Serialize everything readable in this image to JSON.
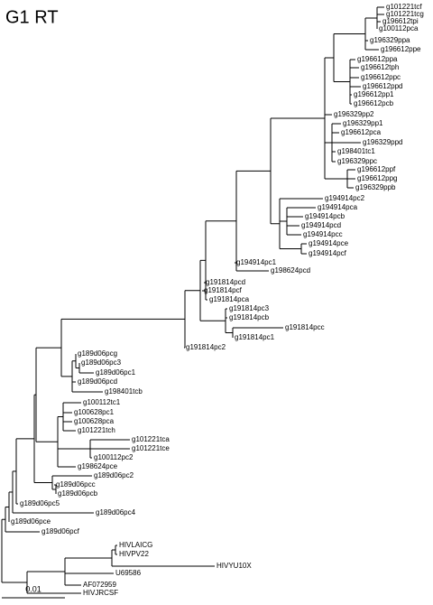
{
  "title": "G1 RT",
  "leaves": [
    "g101221tcf",
    "g101221tcg",
    "g196612tpi",
    "g100112pca",
    "g196329ppa",
    "g196612ppe",
    "g196612ppa",
    "g196612tph",
    "g196612ppc",
    "g196612ppd",
    "g196612pp1",
    "g196612pcb",
    "g196329pp2",
    "g196329pp1",
    "g196612pca",
    "g196329ppd",
    "g198401tc1",
    "g196329ppc",
    "g196612ppf",
    "g196612ppg",
    "g196329ppb",
    "g194914pc2",
    "g194914pca",
    "g194914pcb",
    "g194914pcd",
    "g194914pcc",
    "g194914pce",
    "g194914pcf",
    "g194914pc1",
    "g198624pcd",
    "g191814pcd",
    "g191814pcf",
    "g191814pca",
    "g191814pc3",
    "g191814pcb",
    "g191814pcc",
    "g191814pc1",
    "g191814pc2",
    "g189d06pcg",
    "g189d06pc3",
    "g189d06pc1",
    "g189d06pcd",
    "g198401tcb",
    "g100112tc1",
    "g100628pc1",
    "g100628pca",
    "g101221tch",
    "g101221tca",
    "g101221tce",
    "g100112pc2",
    "g198624pce",
    "g189d06pc2",
    "g189d06pcc",
    "g189d06pcb",
    "g189d06pc5",
    "g189d06pc4",
    "g189d06pce",
    "g189d06pcf",
    "HIVLAICG",
    "HIVPV22",
    "HIVYU10X",
    "U69586",
    "AF072959",
    "HIVJRCSF"
  ],
  "scale_bar": {
    "label": "0.01"
  }
}
